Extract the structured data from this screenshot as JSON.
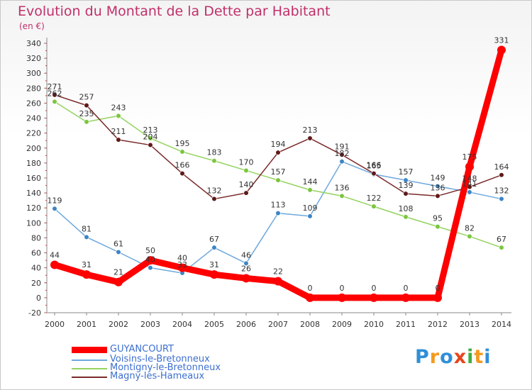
{
  "title": "Evolution du Montant de la Dette par Habitant",
  "subtitle": "(en €)",
  "logo": {
    "text": "Proxiti",
    "letter_colors": [
      "#2f8fd8",
      "#f39a1e",
      "#2f8fd8",
      "#e8441c",
      "#3fae3f",
      "#f39a1e",
      "#2f8fd8"
    ]
  },
  "chart_data": {
    "type": "line",
    "x": [
      2000,
      2001,
      2002,
      2003,
      2004,
      2005,
      2006,
      2007,
      2008,
      2009,
      2010,
      2011,
      2012,
      2013,
      2014
    ],
    "ylim": [
      -20,
      340
    ],
    "yticks": [
      -20,
      0,
      20,
      40,
      60,
      80,
      100,
      120,
      140,
      160,
      180,
      200,
      220,
      240,
      260,
      280,
      300,
      320,
      340
    ],
    "grid": false,
    "legend_position": "bottom-left",
    "series": [
      {
        "name": "GUYANCOURT",
        "color": "#ff0000",
        "marker_color": "#ff0000",
        "values": [
          44,
          31,
          21,
          50,
          40,
          31,
          26,
          22,
          0,
          0,
          0,
          0,
          0,
          175,
          331
        ],
        "labels": [
          "44",
          "31",
          "21",
          "50",
          "40",
          "31",
          "26",
          "22",
          "0",
          "0",
          "0",
          "0",
          "0",
          "175",
          "331"
        ],
        "emphasis": true
      },
      {
        "name": "Voisins-le-Bretonneux",
        "color": "#6fa8dc",
        "marker_color": "#3d85c6",
        "values": [
          119,
          81,
          61,
          40,
          33,
          67,
          46,
          113,
          109,
          182,
          165,
          157,
          149,
          141,
          132
        ],
        "labels": [
          "119",
          "81",
          "61",
          "40",
          "33",
          "67",
          "46",
          "113",
          "109",
          "182",
          "165",
          "157",
          "149",
          "141",
          "132"
        ]
      },
      {
        "name": "Montigny-le-Bretonneux",
        "color": "#93d35e",
        "marker_color": "#7cc63e",
        "values": [
          262,
          235,
          243,
          213,
          195,
          183,
          170,
          157,
          144,
          136,
          122,
          108,
          95,
          82,
          67
        ],
        "labels": [
          "262",
          "235",
          "243",
          "213",
          "195",
          "183",
          "170",
          "157",
          "144",
          "136",
          "122",
          "108",
          "95",
          "82",
          "67"
        ]
      },
      {
        "name": "Magny-les-Hameaux",
        "color": "#7a2a2a",
        "marker_color": "#5e1a1a",
        "values": [
          271,
          257,
          211,
          204,
          166,
          132,
          140,
          194,
          213,
          191,
          166,
          139,
          136,
          148,
          164
        ],
        "labels": [
          "271",
          "257",
          "211",
          "204",
          "166",
          "132",
          "140",
          "194",
          "213",
          "191",
          "166",
          "139",
          "136",
          "148",
          "164"
        ]
      }
    ]
  }
}
